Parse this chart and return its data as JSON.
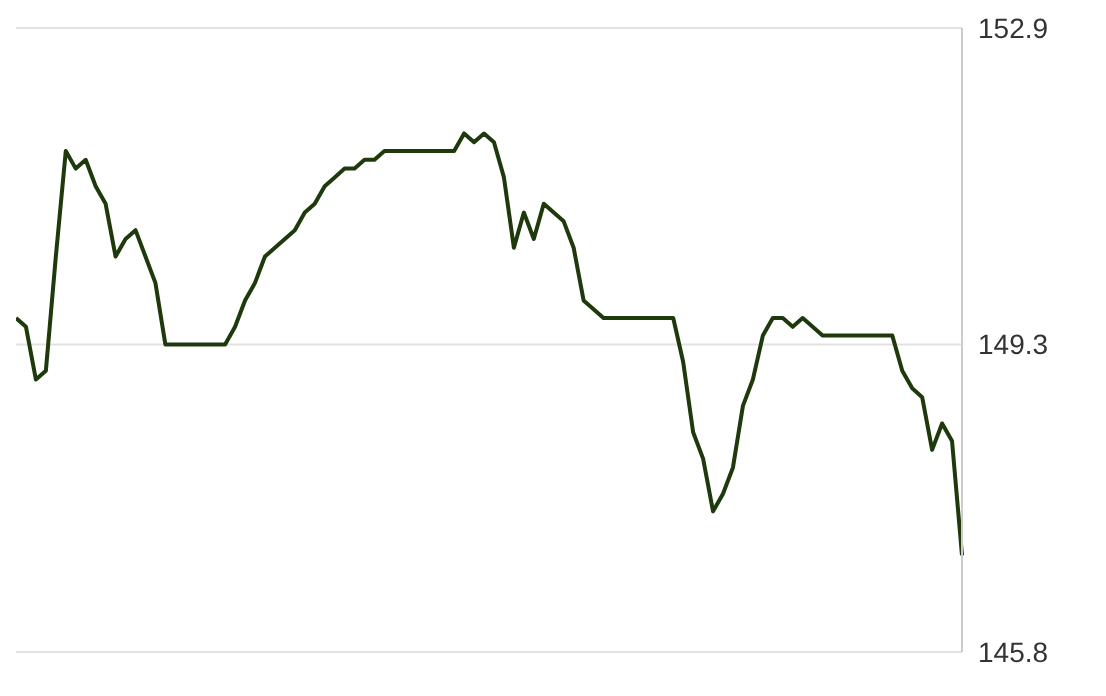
{
  "chart_data": {
    "type": "line",
    "categories": [
      null,
      null,
      null,
      null,
      null,
      null,
      null,
      null,
      null,
      null,
      null,
      null,
      null,
      null,
      null,
      null,
      null,
      null,
      null,
      null,
      null,
      null,
      null,
      null,
      null,
      null,
      null,
      null,
      null,
      null,
      null,
      null,
      null,
      null,
      null,
      null,
      null,
      null,
      null,
      null,
      null,
      null,
      null,
      null,
      null,
      null,
      null,
      null,
      null,
      null,
      null,
      null,
      null,
      null,
      null,
      null,
      null,
      null,
      null,
      null,
      null,
      null,
      null,
      null,
      null,
      null,
      null,
      null,
      null,
      null,
      null,
      null,
      null,
      null,
      null,
      null,
      null,
      null,
      null,
      null,
      null,
      null,
      null,
      null,
      null,
      null,
      null,
      null,
      null,
      null,
      null,
      null,
      null,
      null,
      null,
      null
    ],
    "series": [
      {
        "color": "#1e3a0c",
        "values": [
          149.6,
          149.5,
          148.9,
          149.0,
          150.3,
          151.5,
          151.3,
          151.4,
          151.1,
          150.9,
          150.3,
          150.5,
          150.6,
          150.3,
          150.0,
          149.3,
          149.3,
          149.3,
          149.3,
          149.3,
          149.3,
          149.3,
          149.5,
          149.8,
          150.0,
          150.3,
          150.4,
          150.5,
          150.6,
          150.8,
          150.9,
          151.1,
          151.2,
          151.3,
          151.3,
          151.4,
          151.4,
          151.5,
          151.5,
          151.5,
          151.5,
          151.5,
          151.5,
          151.5,
          151.5,
          151.7,
          151.6,
          151.7,
          151.6,
          151.2,
          150.4,
          150.8,
          150.5,
          150.9,
          150.8,
          150.7,
          150.4,
          149.8,
          149.7,
          149.6,
          149.6,
          149.6,
          149.6,
          149.6,
          149.6,
          149.6,
          149.6,
          149.1,
          148.3,
          148.0,
          147.4,
          147.6,
          147.9,
          148.6,
          148.9,
          149.4,
          149.6,
          149.6,
          149.5,
          149.6,
          149.5,
          149.4,
          149.4,
          149.4,
          149.4,
          149.4,
          149.4,
          149.4,
          149.4,
          149.0,
          148.8,
          148.7,
          148.1,
          148.4,
          148.2,
          146.9
        ]
      }
    ],
    "ylim": [
      145.8,
      152.9
    ],
    "yticks": [
      145.8,
      149.3,
      152.9
    ],
    "grid": "y",
    "tick_labels": "y",
    "marker": "none",
    "line_style": "solid"
  }
}
